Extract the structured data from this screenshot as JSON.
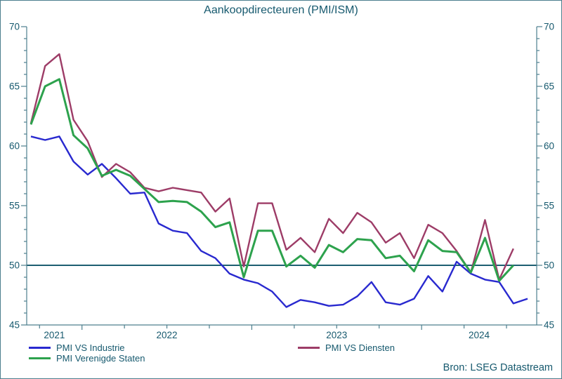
{
  "title": "Aankoopdirecteuren (PMI/ISM)",
  "source": "Bron: LSEG Datastream",
  "colors": {
    "text": "#16596e",
    "axis": "#4d7f8e",
    "reference_line": "#1d5f71",
    "series_industrie": "#2929cf",
    "series_vs": "#2da24d",
    "series_diensten": "#9d3c67"
  },
  "chart_data": {
    "type": "line",
    "title": "Aankoopdirecteuren (PMI/ISM)",
    "ylim": [
      45,
      70
    ],
    "y_ticks": [
      45,
      50,
      55,
      60,
      65,
      70
    ],
    "y_axis_sides": "both",
    "grid": false,
    "reference_line": 50,
    "x_interval": "month",
    "x_tick_interval": "quarter",
    "year_labels": [
      "2021",
      "2022",
      "2023",
      "2024"
    ],
    "months": [
      "2021-09",
      "2021-10",
      "2021-11",
      "2021-12",
      "2022-01",
      "2022-02",
      "2022-03",
      "2022-04",
      "2022-05",
      "2022-06",
      "2022-07",
      "2022-08",
      "2022-09",
      "2022-10",
      "2022-11",
      "2022-12",
      "2023-01",
      "2023-02",
      "2023-03",
      "2023-04",
      "2023-05",
      "2023-06",
      "2023-07",
      "2023-08",
      "2023-09",
      "2023-10",
      "2023-11",
      "2023-12",
      "2024-01",
      "2024-02",
      "2024-03",
      "2024-04",
      "2024-05",
      "2024-06",
      "2024-07",
      "2024-08"
    ],
    "series": [
      {
        "name": "PMI VS Industrie",
        "color": "#2929cf",
        "values": [
          60.8,
          60.5,
          60.8,
          58.7,
          57.6,
          58.5,
          57.3,
          56.0,
          56.1,
          53.5,
          52.9,
          52.7,
          51.2,
          50.6,
          49.3,
          48.8,
          48.5,
          47.8,
          46.5,
          47.1,
          46.9,
          46.6,
          46.7,
          47.4,
          48.6,
          46.9,
          46.7,
          47.2,
          49.1,
          47.8,
          50.3,
          49.3,
          48.8,
          48.6,
          46.8,
          47.2
        ]
      },
      {
        "name": "PMI Verenigde Staten",
        "color": "#2da24d",
        "values": [
          61.8,
          65.0,
          65.6,
          60.9,
          59.8,
          57.5,
          58.0,
          57.5,
          56.4,
          55.3,
          55.4,
          55.3,
          54.5,
          53.2,
          53.6,
          49.0,
          52.9,
          52.9,
          49.9,
          50.8,
          49.8,
          51.7,
          51.1,
          52.2,
          52.1,
          50.6,
          50.8,
          49.5,
          52.1,
          51.2,
          51.1,
          49.4,
          52.3,
          48.7,
          50.0
        ]
      },
      {
        "name": "PMI VS Diensten",
        "color": "#9d3c67",
        "values": [
          61.9,
          66.7,
          67.7,
          62.2,
          60.4,
          57.4,
          58.5,
          57.8,
          56.5,
          56.2,
          56.5,
          56.3,
          56.1,
          54.5,
          55.6,
          49.9,
          55.2,
          55.2,
          51.3,
          52.3,
          51.1,
          53.9,
          52.7,
          54.4,
          53.6,
          51.9,
          52.7,
          50.6,
          53.4,
          52.7,
          51.2,
          49.4,
          53.8,
          48.8,
          51.4
        ]
      }
    ]
  }
}
